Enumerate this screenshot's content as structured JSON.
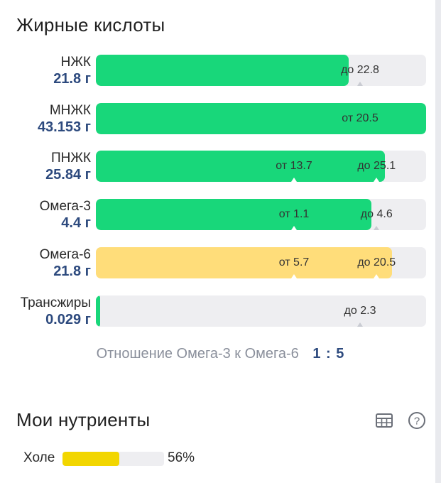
{
  "fatty_acids": {
    "title": "Жирные кислоты",
    "rows": [
      {
        "name": "НЖК",
        "value": "21.8 г",
        "fill_ratio": 0.765,
        "color": "#18d77a",
        "marks": [
          {
            "text": "до 22.8",
            "at": 0.8,
            "tick": "grey"
          }
        ]
      },
      {
        "name": "МНЖК",
        "value": "43.153 г",
        "fill_ratio": 1.0,
        "color": "#18d77a",
        "marks": [
          {
            "text": "от 20.5",
            "at": 0.8,
            "tick": "none"
          }
        ]
      },
      {
        "name": "ПНЖК",
        "value": "25.84 г",
        "fill_ratio": 0.875,
        "color": "#18d77a",
        "marks": [
          {
            "text": "от 13.7",
            "at": 0.6,
            "tick": "white"
          },
          {
            "text": "до 25.1",
            "at": 0.85,
            "tick": "white"
          }
        ]
      },
      {
        "name": "Омега-3",
        "value": "4.4 г",
        "fill_ratio": 0.835,
        "color": "#18d77a",
        "marks": [
          {
            "text": "от 1.1",
            "at": 0.6,
            "tick": "white"
          },
          {
            "text": "до 4.6",
            "at": 0.85,
            "tick": "grey"
          }
        ]
      },
      {
        "name": "Омега-6",
        "value": "21.8 г",
        "fill_ratio": 0.897,
        "color": "#ffdd7a",
        "marks": [
          {
            "text": "от 5.7",
            "at": 0.6,
            "tick": "white"
          },
          {
            "text": "до 20.5",
            "at": 0.85,
            "tick": "white"
          }
        ]
      },
      {
        "name": "Трансжиры",
        "value": "0.029 г",
        "fill_ratio": 0.012,
        "color": "#18d77a",
        "marks": [
          {
            "text": "до 2.3",
            "at": 0.8,
            "tick": "grey"
          }
        ]
      }
    ]
  },
  "ratio": {
    "label": "Отношение Омега-3 к Омега-6",
    "value": "1 : 5"
  },
  "my_nutrients": {
    "title": "Мои нутриенты",
    "table_icon": "table-icon",
    "help_icon": "help-icon",
    "items": [
      {
        "name": "Холе",
        "percent": "56%",
        "fill_ratio": 0.56,
        "color": "#f2d600"
      }
    ]
  }
}
